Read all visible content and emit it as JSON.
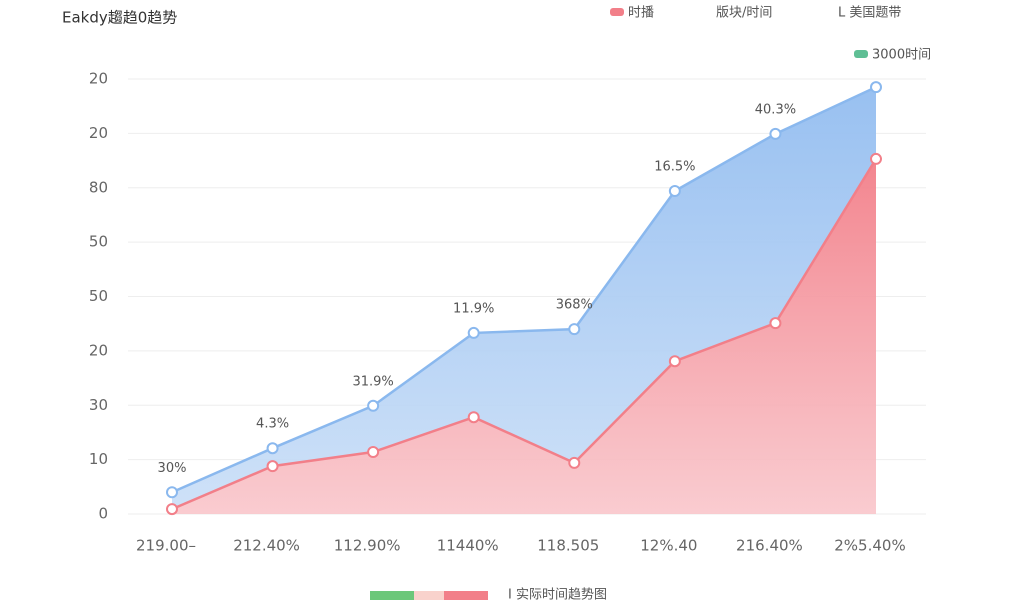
{
  "chart_data": {
    "type": "stacked_area",
    "title": "Eakdy趨趋0趋势",
    "categories": [
      "219.00–",
      "212.40%",
      "112.90%",
      "11440%",
      "118.505",
      "12%.40",
      "216.40%",
      "2%5.40%"
    ],
    "series": [
      {
        "name": "时播",
        "color": "#f27f89",
        "values": [
          0.9,
          8.8,
          11.4,
          17.8,
          9.4,
          28.1,
          35.1,
          65.3
        ]
      },
      {
        "name": "3000时间",
        "color": "#8ab8ee",
        "legend_color": "#5fbf95",
        "values": [
          3.1,
          3.3,
          8.5,
          15.5,
          24.6,
          31.3,
          34.8,
          13.2
        ]
      }
    ],
    "annotations": [
      "30%",
      "4.3%",
      "31.9%",
      "11.9%",
      "368%",
      "16.5%",
      "40.3%",
      null
    ],
    "header_texts": [
      "版块/时间",
      "L 美国题带"
    ],
    "footer_legend": {
      "label": "I 实际时间趋势图",
      "colors": [
        "#6cc77a",
        "#f9d2cc",
        "#f27f89"
      ]
    },
    "ylim": [
      0,
      80
    ],
    "yticks": [
      0,
      10,
      {
        "value": 20,
        "label": "30"
      },
      {
        "value": 30,
        "label": "20"
      },
      {
        "value": 40,
        "label": "50"
      },
      50,
      {
        "value": 60,
        "label": "80"
      },
      {
        "value": 70,
        "label": "20"
      },
      {
        "value": 80,
        "label": "20"
      }
    ],
    "grid": true
  }
}
